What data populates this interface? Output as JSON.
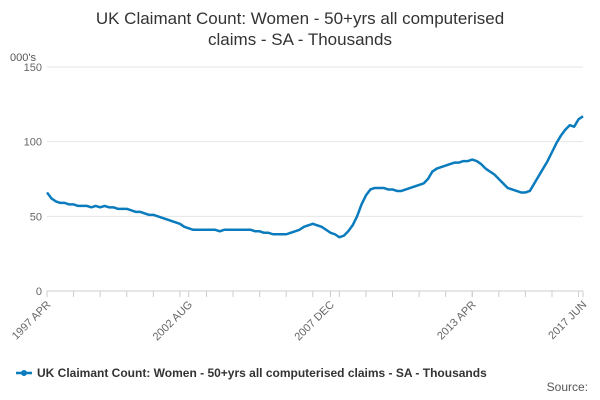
{
  "chart_data": {
    "type": "line",
    "title": [
      "UK Claimant Count: Women - 50+yrs all computerised",
      "claims - SA - Thousands"
    ],
    "y_unit": "000's",
    "source": "Source:",
    "categories": [
      "1997 APR",
      null,
      null,
      null,
      null,
      null,
      null,
      null,
      null,
      null,
      null,
      null,
      null,
      null,
      null,
      null,
      null,
      null,
      null,
      null,
      null,
      null,
      null,
      null,
      null,
      null,
      null,
      null,
      null,
      null,
      null,
      null,
      "2002 AUG",
      null,
      null,
      null,
      null,
      null,
      null,
      null,
      null,
      null,
      null,
      null,
      null,
      null,
      null,
      null,
      null,
      null,
      null,
      null,
      null,
      null,
      null,
      null,
      null,
      null,
      null,
      null,
      null,
      null,
      null,
      null,
      "2007 DEC",
      null,
      null,
      null,
      null,
      null,
      null,
      null,
      null,
      null,
      null,
      null,
      null,
      null,
      null,
      null,
      null,
      null,
      null,
      null,
      null,
      null,
      null,
      null,
      null,
      null,
      null,
      null,
      null,
      null,
      null,
      null,
      "2013 APR",
      null,
      null,
      null,
      null,
      null,
      null,
      null,
      null,
      null,
      null,
      null,
      null,
      null,
      null,
      null,
      null,
      null,
      null,
      null,
      null,
      null,
      null,
      null,
      null,
      "2017 JUN"
    ],
    "series": [
      {
        "name": "UK Claimant Count: Women - 50+yrs all computerised claims - SA - Thousands",
        "color": "#0a7bbd",
        "values": [
          66,
          62,
          60,
          59,
          59,
          58,
          58,
          57,
          57,
          57,
          56,
          57,
          56,
          57,
          56,
          56,
          55,
          55,
          55,
          54,
          53,
          53,
          52,
          51,
          51,
          50,
          49,
          48,
          47,
          46,
          45,
          43,
          42,
          41,
          41,
          41,
          41,
          41,
          41,
          40,
          41,
          41,
          41,
          41,
          41,
          41,
          41,
          40,
          40,
          39,
          39,
          38,
          38,
          38,
          38,
          39,
          40,
          41,
          43,
          44,
          45,
          44,
          43,
          41,
          39,
          38,
          36,
          37,
          40,
          44,
          50,
          58,
          64,
          68,
          69,
          69,
          69,
          68,
          68,
          67,
          67,
          68,
          69,
          70,
          71,
          72,
          75,
          80,
          82,
          83,
          84,
          85,
          86,
          86,
          87,
          87,
          88,
          87,
          85,
          82,
          80,
          78,
          75,
          72,
          69,
          68,
          67,
          66,
          66,
          67,
          72,
          77,
          82,
          87,
          93,
          99,
          104,
          108,
          111,
          110,
          115,
          117
        ]
      }
    ],
    "ylim": [
      0,
      150
    ],
    "yticks": [
      0,
      50,
      100,
      150
    ],
    "grid": true,
    "legend": "bottom"
  }
}
